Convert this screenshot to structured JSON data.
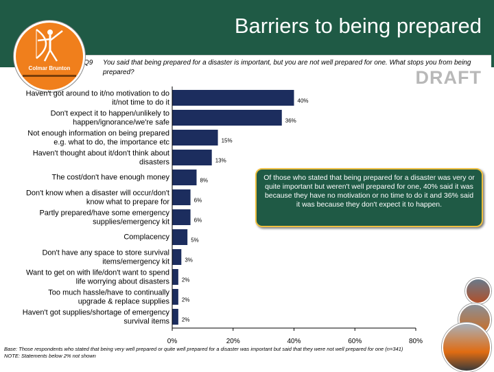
{
  "title": "Barriers to being prepared",
  "question": {
    "number": "Q9",
    "text": "You said that being prepared for a disaster is important, but you are not well prepared for one.  What stops you from being prepared?"
  },
  "draft_label": "DRAFT",
  "logo": {
    "name": "Colmar Brunton"
  },
  "callout": "Of those who stated that being prepared for a disaster was very or quite important but weren't well prepared for one, 40% said it was because they have no motivation or no time to do it and 36% said it was because they don't expect it to happen.",
  "footnote": {
    "base": "Base: Those respondents who stated that being very well prepared or quite well prepared for a disaster was important but said that they were not well prepared for one (n=341)",
    "note": "NOTE: Statements below 2% not shown"
  },
  "colors": {
    "header": "#1f5a45",
    "bar": "#1c2d5e",
    "callout_border": "#f0c040",
    "logo": "#f07f1c"
  },
  "chart_data": {
    "type": "bar",
    "orientation": "horizontal",
    "categories": [
      [
        "Haven't got around to it/no motivation to do",
        "it/not time to do it"
      ],
      [
        "Don't expect it to happen/unlikely to",
        "happen/ignorance/we're safe"
      ],
      [
        "Not enough information on being prepared",
        "e.g. what to do, the importance etc"
      ],
      [
        "Haven't thought about it/don't think about",
        "disasters"
      ],
      [
        "The cost/don't have enough money"
      ],
      [
        "Don't know when a disaster will occur/don't",
        "know what to prepare for"
      ],
      [
        "Partly prepared/have some emergency",
        "supplies/emergency kit"
      ],
      [
        "Complacency"
      ],
      [
        "Don't have any space to store survival",
        "items/emergency kit"
      ],
      [
        "Want to get on with life/don't want to spend",
        "life worrying about disasters"
      ],
      [
        "Too much hassle/have to continually",
        "upgrade & replace supplies"
      ],
      [
        "Haven't got supplies/shortage of emergency",
        "survival items"
      ]
    ],
    "values": [
      40,
      36,
      15,
      13,
      8,
      6,
      6,
      5,
      3,
      2,
      2,
      2
    ],
    "value_labels": [
      "40%",
      "36%",
      "15%",
      "13%",
      "8%",
      "6%",
      "6%",
      "5%",
      "3%",
      "2%",
      "2%",
      "2%"
    ],
    "xlim": [
      0,
      80
    ],
    "xticks": [
      "0%",
      "20%",
      "40%",
      "60%",
      "80%"
    ],
    "xtick_values": [
      0,
      20,
      40,
      60,
      80
    ],
    "grid": false,
    "legend": "none"
  }
}
